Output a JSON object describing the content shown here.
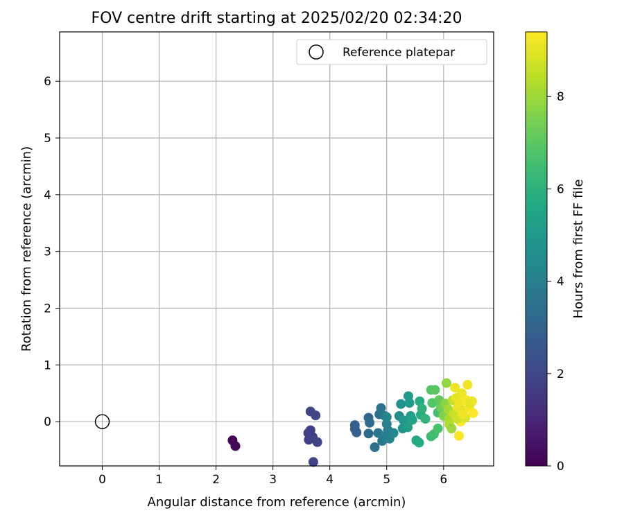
{
  "chart_data": {
    "type": "scatter",
    "title": "FOV centre drift starting at 2025/02/20 02:34:20",
    "xlabel": "Angular distance from reference (arcmin)",
    "ylabel": "Rotation from reference (arcmin)",
    "xlim": [
      -0.75,
      6.88
    ],
    "ylim": [
      -0.78,
      6.87
    ],
    "xticks": [
      0,
      1,
      2,
      3,
      4,
      5,
      6
    ],
    "yticks": [
      0,
      1,
      2,
      3,
      4,
      5,
      6
    ],
    "grid": true,
    "legend": {
      "position": "top-right",
      "entries": [
        "Reference platepar"
      ]
    },
    "reference_point": {
      "x": 0,
      "y": 0,
      "label": "Reference platepar"
    },
    "colorbar": {
      "label": "Hours from first FF file",
      "colormap": "viridis",
      "range": [
        0,
        9.4
      ],
      "ticks": [
        0,
        2,
        4,
        6,
        8
      ]
    },
    "points": [
      {
        "x": 2.29,
        "y": -0.33,
        "h": 0.05
      },
      {
        "x": 2.34,
        "y": -0.43,
        "h": 0.15
      },
      {
        "x": 3.62,
        "y": -0.2,
        "h": 1.7
      },
      {
        "x": 3.66,
        "y": -0.15,
        "h": 1.75
      },
      {
        "x": 3.63,
        "y": -0.32,
        "h": 1.8
      },
      {
        "x": 3.7,
        "y": -0.27,
        "h": 1.85
      },
      {
        "x": 3.78,
        "y": -0.36,
        "h": 1.9
      },
      {
        "x": 3.66,
        "y": 0.18,
        "h": 1.95
      },
      {
        "x": 3.75,
        "y": 0.11,
        "h": 2.0
      },
      {
        "x": 3.71,
        "y": -0.71,
        "h": 1.9
      },
      {
        "x": 4.44,
        "y": -0.06,
        "h": 2.8
      },
      {
        "x": 4.47,
        "y": -0.19,
        "h": 2.9
      },
      {
        "x": 4.44,
        "y": -0.13,
        "h": 2.85
      },
      {
        "x": 4.68,
        "y": 0.07,
        "h": 3.1
      },
      {
        "x": 4.68,
        "y": -0.21,
        "h": 3.2
      },
      {
        "x": 4.7,
        "y": -0.02,
        "h": 3.3
      },
      {
        "x": 4.79,
        "y": -0.45,
        "h": 3.4
      },
      {
        "x": 4.87,
        "y": 0.13,
        "h": 3.5
      },
      {
        "x": 4.9,
        "y": 0.24,
        "h": 3.6
      },
      {
        "x": 4.85,
        "y": -0.2,
        "h": 3.7
      },
      {
        "x": 4.92,
        "y": -0.34,
        "h": 3.75
      },
      {
        "x": 4.97,
        "y": 0.1,
        "h": 3.85
      },
      {
        "x": 4.95,
        "y": -0.27,
        "h": 3.9
      },
      {
        "x": 5.0,
        "y": -0.04,
        "h": 3.95
      },
      {
        "x": 5.02,
        "y": -0.15,
        "h": 4.0
      },
      {
        "x": 5.05,
        "y": -0.3,
        "h": 4.1
      },
      {
        "x": 5.0,
        "y": 0.08,
        "h": 4.2
      },
      {
        "x": 5.12,
        "y": -0.2,
        "h": 4.3
      },
      {
        "x": 5.22,
        "y": 0.1,
        "h": 4.6
      },
      {
        "x": 5.25,
        "y": 0.31,
        "h": 4.7
      },
      {
        "x": 5.28,
        "y": -0.12,
        "h": 4.8
      },
      {
        "x": 5.3,
        "y": 0.02,
        "h": 4.9
      },
      {
        "x": 5.38,
        "y": 0.45,
        "h": 5.0
      },
      {
        "x": 5.4,
        "y": 0.33,
        "h": 5.1
      },
      {
        "x": 5.37,
        "y": -0.1,
        "h": 5.2
      },
      {
        "x": 5.42,
        "y": 0.1,
        "h": 5.3
      },
      {
        "x": 5.45,
        "y": 0.03,
        "h": 5.4
      },
      {
        "x": 5.52,
        "y": -0.33,
        "h": 5.6
      },
      {
        "x": 5.57,
        "y": -0.37,
        "h": 5.7
      },
      {
        "x": 5.58,
        "y": 0.36,
        "h": 5.8
      },
      {
        "x": 5.6,
        "y": 0.12,
        "h": 5.9
      },
      {
        "x": 5.62,
        "y": 0.23,
        "h": 6.0
      },
      {
        "x": 5.68,
        "y": 0.05,
        "h": 6.1
      },
      {
        "x": 5.78,
        "y": -0.26,
        "h": 6.4
      },
      {
        "x": 5.83,
        "y": -0.22,
        "h": 6.5
      },
      {
        "x": 5.78,
        "y": 0.56,
        "h": 6.9
      },
      {
        "x": 5.85,
        "y": 0.56,
        "h": 7.0
      },
      {
        "x": 5.8,
        "y": 0.33,
        "h": 6.8
      },
      {
        "x": 5.9,
        "y": 0.16,
        "h": 6.6
      },
      {
        "x": 5.92,
        "y": 0.38,
        "h": 7.1
      },
      {
        "x": 5.95,
        "y": 0.25,
        "h": 7.3
      },
      {
        "x": 5.9,
        "y": -0.12,
        "h": 6.7
      },
      {
        "x": 6.0,
        "y": 0.1,
        "h": 7.6
      },
      {
        "x": 6.03,
        "y": 0.32,
        "h": 7.7
      },
      {
        "x": 6.05,
        "y": 0.68,
        "h": 7.9
      },
      {
        "x": 6.08,
        "y": 0.22,
        "h": 8.1
      },
      {
        "x": 6.1,
        "y": 0.05,
        "h": 8.2
      },
      {
        "x": 6.1,
        "y": -0.05,
        "h": 8.3
      },
      {
        "x": 6.14,
        "y": -0.12,
        "h": 8.0
      },
      {
        "x": 6.16,
        "y": 0.38,
        "h": 8.5
      },
      {
        "x": 6.18,
        "y": 0.14,
        "h": 8.6
      },
      {
        "x": 6.2,
        "y": 0.6,
        "h": 9.2
      },
      {
        "x": 6.22,
        "y": 0.42,
        "h": 9.0
      },
      {
        "x": 6.25,
        "y": 0.25,
        "h": 9.1
      },
      {
        "x": 6.27,
        "y": -0.25,
        "h": 9.3
      },
      {
        "x": 6.28,
        "y": 0.33,
        "h": 9.2
      },
      {
        "x": 6.3,
        "y": 0.0,
        "h": 9.35
      },
      {
        "x": 6.32,
        "y": 0.5,
        "h": 9.1
      },
      {
        "x": 6.35,
        "y": 0.2,
        "h": 9.0
      },
      {
        "x": 6.38,
        "y": 0.07,
        "h": 8.9
      },
      {
        "x": 6.4,
        "y": 0.38,
        "h": 9.3
      },
      {
        "x": 6.42,
        "y": 0.65,
        "h": 9.2
      },
      {
        "x": 6.45,
        "y": 0.25,
        "h": 9.3
      },
      {
        "x": 6.47,
        "y": 0.32,
        "h": 9.0
      },
      {
        "x": 6.5,
        "y": 0.36,
        "h": 9.1
      },
      {
        "x": 6.52,
        "y": 0.15,
        "h": 9.35
      },
      {
        "x": 6.24,
        "y": 0.05,
        "h": 8.7
      },
      {
        "x": 6.33,
        "y": 0.13,
        "h": 9.2
      }
    ]
  }
}
